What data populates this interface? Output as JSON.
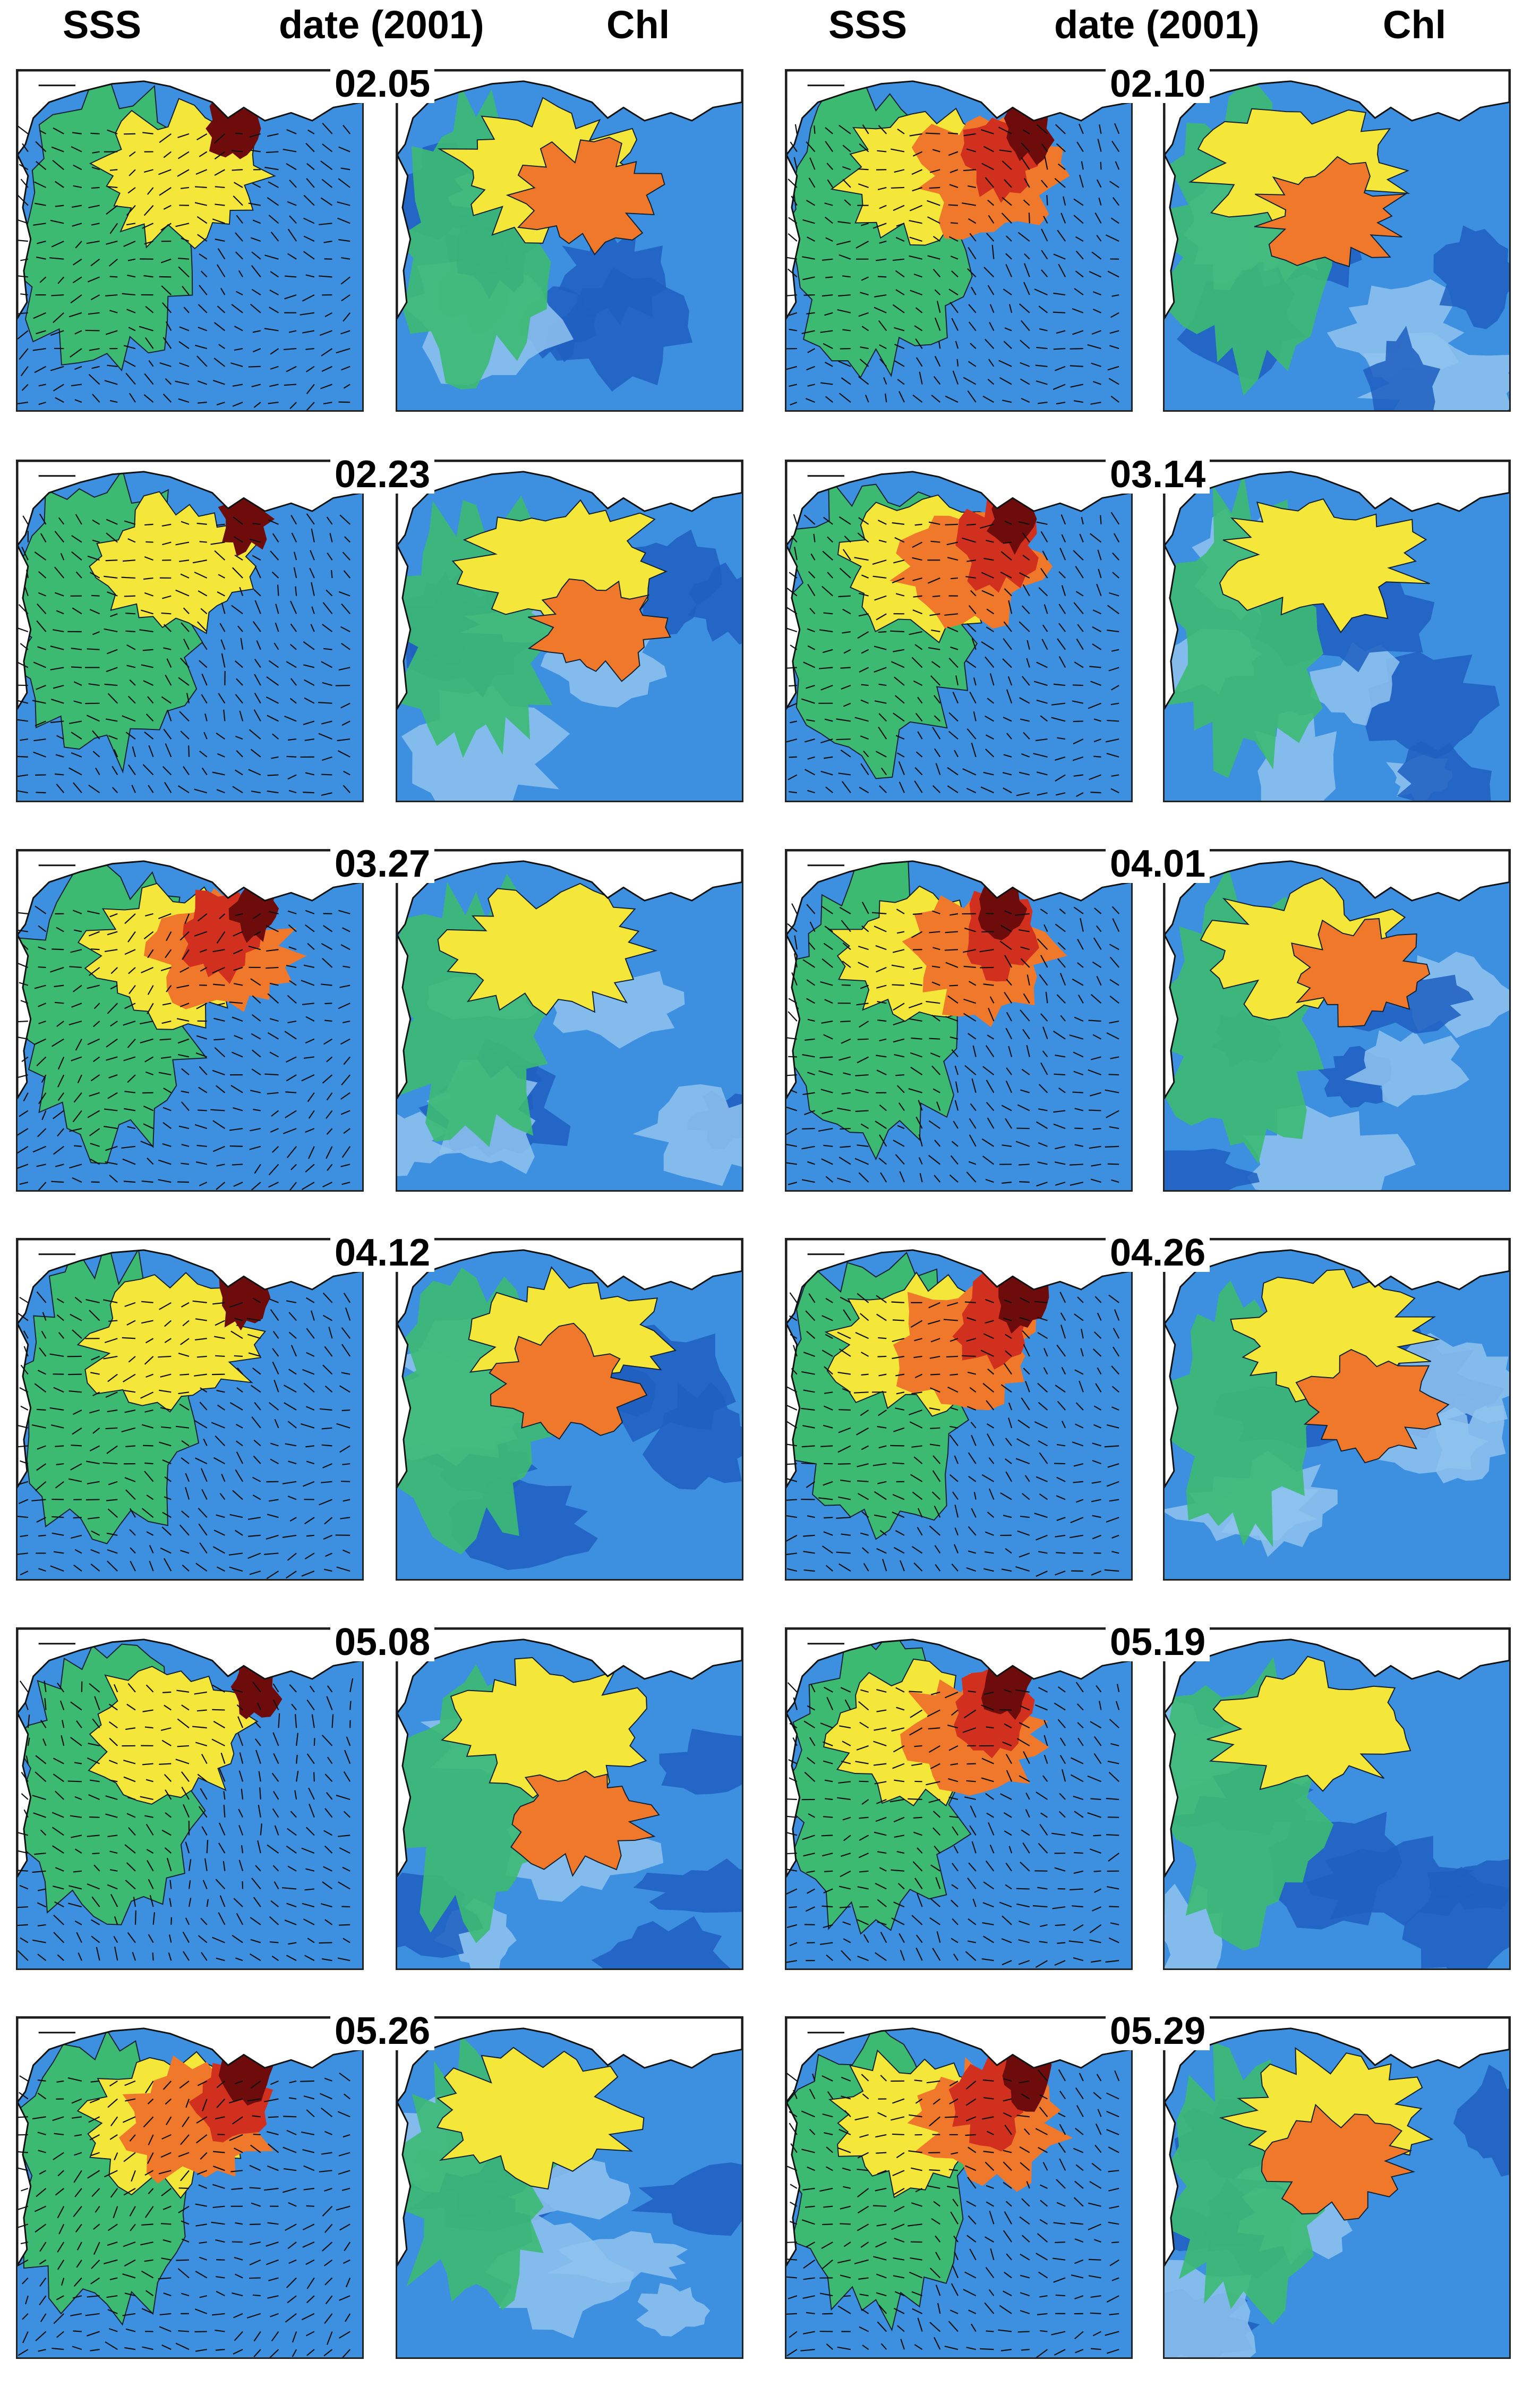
{
  "headers": {
    "left_sss": "SSS",
    "left_date": "date (2001)",
    "left_chl": "Chl",
    "right_sss": "SSS",
    "right_date": "date (2001)",
    "right_chl": "Chl"
  },
  "rows": [
    {
      "left_date": "02.05",
      "right_date": "02.10"
    },
    {
      "left_date": "02.23",
      "right_date": "03.14"
    },
    {
      "left_date": "03.27",
      "right_date": "04.01"
    },
    {
      "left_date": "04.12",
      "right_date": "04.26"
    },
    {
      "left_date": "05.08",
      "right_date": "05.19"
    },
    {
      "left_date": "05.26",
      "right_date": "05.29"
    }
  ],
  "colors": {
    "ocean": "#3d8fe0",
    "ocean_light": "#8fc3ef",
    "ocean_deep": "#1f5fc0",
    "green": "#3cba72",
    "yellow": "#f5e63a",
    "orange": "#f0782a",
    "red": "#d2301e",
    "dark_red": "#6e0c0c",
    "land": "#ffffff",
    "arrow": "#111111"
  }
}
